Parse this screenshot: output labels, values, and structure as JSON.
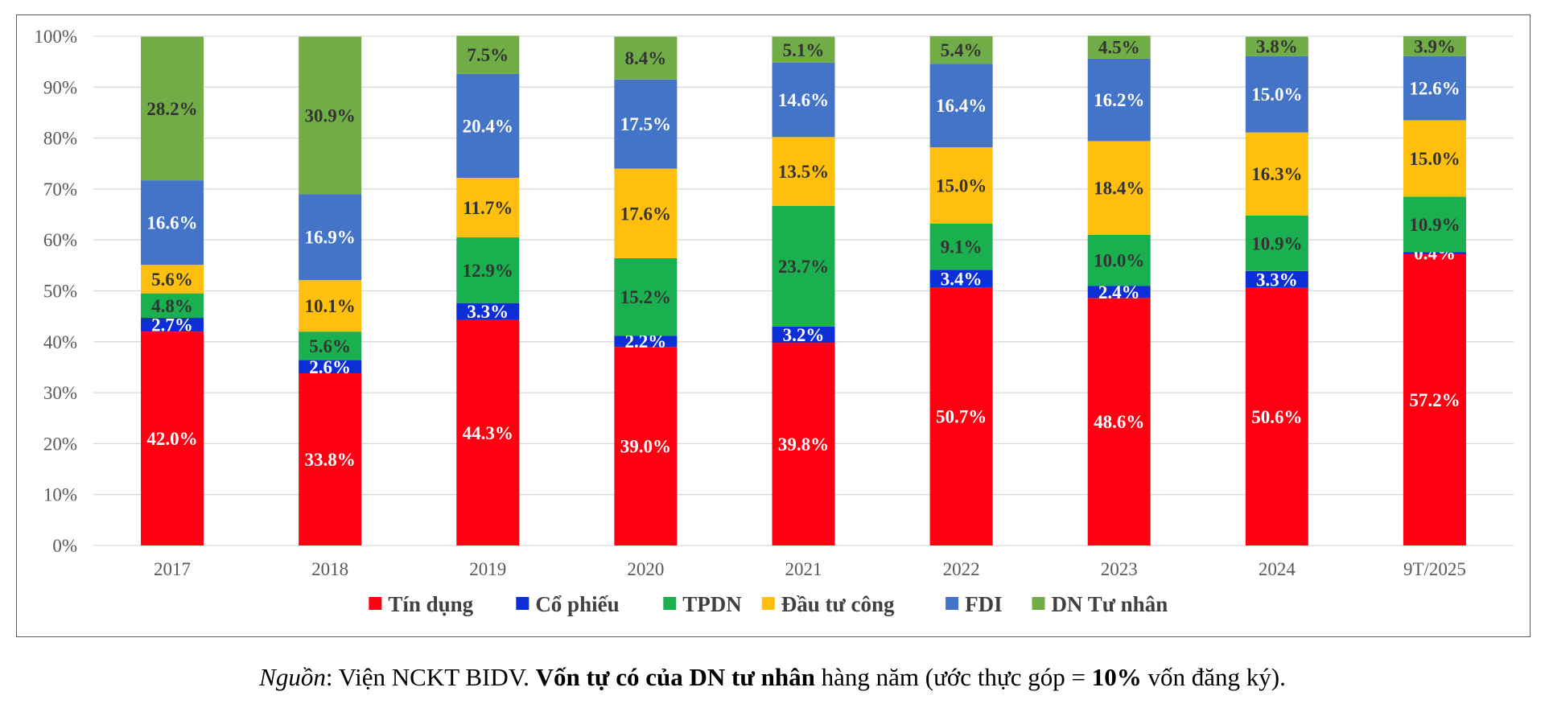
{
  "chart_data": {
    "type": "bar",
    "stacked": true,
    "percent": true,
    "categories": [
      "2017",
      "2018",
      "2019",
      "2020",
      "2021",
      "2022",
      "2023",
      "2024",
      "9T/2025"
    ],
    "ylim": [
      0,
      100
    ],
    "yticks": [
      "0%",
      "10%",
      "20%",
      "30%",
      "40%",
      "50%",
      "60%",
      "70%",
      "80%",
      "90%",
      "100%"
    ],
    "grid": true,
    "legend_position": "bottom",
    "series": [
      {
        "name": "Tín dụng",
        "color": "#ff0013",
        "label_color": "#ffffff",
        "values": [
          42.0,
          33.8,
          44.3,
          39.0,
          39.8,
          50.7,
          48.6,
          50.6,
          57.2
        ],
        "labels": [
          "42.0%",
          "33.8%",
          "44.3%",
          "39.0%",
          "39.8%",
          "50.7%",
          "48.6%",
          "50.6%",
          "57.2%"
        ]
      },
      {
        "name": "Cổ phiếu",
        "color": "#0c2ed6",
        "label_color": "#ffffff",
        "values": [
          2.7,
          2.6,
          3.3,
          2.2,
          3.2,
          3.4,
          2.4,
          3.3,
          0.4
        ],
        "labels": [
          "2.7%",
          "2.6%",
          "3.3%",
          "2.2%",
          "3.2%",
          "3.4%",
          "2.4%",
          "3.3%",
          "0.4%"
        ]
      },
      {
        "name": "TPDN",
        "color": "#1bb04f",
        "label_color": "#333333",
        "values": [
          4.8,
          5.6,
          12.9,
          15.2,
          23.7,
          9.1,
          10.0,
          10.9,
          10.9
        ],
        "labels": [
          "4.8%",
          "5.6%",
          "12.9%",
          "15.2%",
          "23.7%",
          "9.1%",
          "10.0%",
          "10.9%",
          "10.9%"
        ]
      },
      {
        "name": "Đầu tư công",
        "color": "#ffbf0f",
        "label_color": "#333333",
        "values": [
          5.6,
          10.1,
          11.7,
          17.6,
          13.5,
          15.0,
          18.4,
          16.3,
          15.0
        ],
        "labels": [
          "5.6%",
          "10.1%",
          "11.7%",
          "17.6%",
          "13.5%",
          "15.0%",
          "18.4%",
          "16.3%",
          "15.0%"
        ]
      },
      {
        "name": "FDI",
        "color": "#4374c8",
        "label_color": "#ffffff",
        "values": [
          16.6,
          16.9,
          20.4,
          17.5,
          14.6,
          16.4,
          16.2,
          15.0,
          12.6
        ],
        "labels": [
          "16.6%",
          "16.9%",
          "20.4%",
          "17.5%",
          "14.6%",
          "16.4%",
          "16.2%",
          "15.0%",
          "12.6%"
        ]
      },
      {
        "name": "DN Tư nhân",
        "color": "#71ad47",
        "label_color": "#333333",
        "values": [
          28.2,
          30.9,
          7.5,
          8.4,
          5.1,
          5.4,
          4.5,
          3.8,
          3.9
        ],
        "labels": [
          "28.2%",
          "30.9%",
          "7.5%",
          "8.4%",
          "5.1%",
          "5.4%",
          "4.5%",
          "3.8%",
          "3.9%"
        ]
      }
    ]
  },
  "note": {
    "source_label": "Nguồn",
    "source_text": ": Viện NCKT BIDV. ",
    "bold_text": "Vốn tự có của DN tư nhân",
    "mid_text": " hàng năm (ước thực góp = ",
    "bold_pct": "10%",
    "end_text": " vốn đăng ký)."
  },
  "style": {
    "grid_color": "#d9d9d9",
    "axis_text_color": "#595959"
  }
}
